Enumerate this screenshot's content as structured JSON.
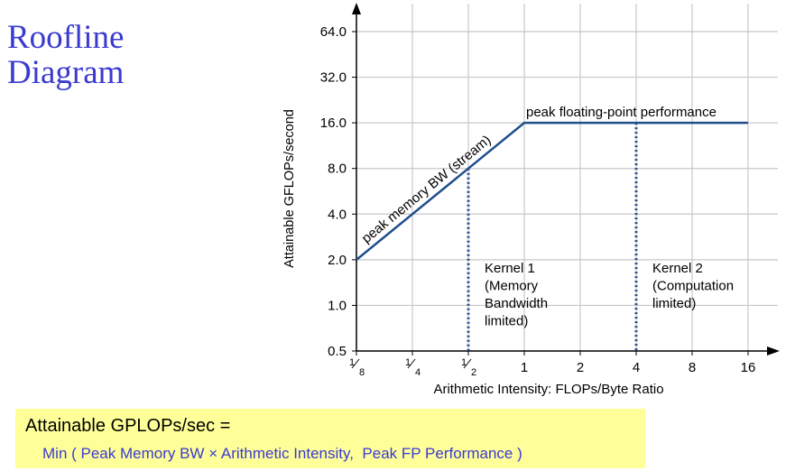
{
  "title": {
    "line1": "Roofline",
    "line2": "Diagram"
  },
  "chart_data": {
    "type": "line",
    "x_scale": "log2",
    "y_scale": "log2",
    "xlabel": "Arithmetic Intensity: FLOPs/Byte Ratio",
    "ylabel": "Attainable GFLOPs/second",
    "x_ticks": [
      {
        "value": 0.125,
        "num": "1",
        "den": "8"
      },
      {
        "value": 0.25,
        "num": "1",
        "den": "4"
      },
      {
        "value": 0.5,
        "num": "1",
        "den": "2"
      },
      {
        "value": 1,
        "label": "1"
      },
      {
        "value": 2,
        "label": "2"
      },
      {
        "value": 4,
        "label": "4"
      },
      {
        "value": 8,
        "label": "8"
      },
      {
        "value": 16,
        "label": "16"
      }
    ],
    "y_ticks": [
      {
        "value": 0.5,
        "label": "0.5"
      },
      {
        "value": 1,
        "label": "1.0"
      },
      {
        "value": 2,
        "label": "2.0"
      },
      {
        "value": 4,
        "label": "4.0"
      },
      {
        "value": 8,
        "label": "8.0"
      },
      {
        "value": 16,
        "label": "16.0"
      },
      {
        "value": 32,
        "label": "32.0"
      },
      {
        "value": 64,
        "label": "64.0"
      }
    ],
    "xlim": [
      0.125,
      16
    ],
    "ylim": [
      0.5,
      64
    ],
    "grid": true,
    "roofline": {
      "x": [
        0.125,
        1,
        16
      ],
      "y": [
        2,
        16,
        16
      ]
    },
    "line_labels": {
      "memory": "peak memory BW (stream)",
      "compute": "peak floating-point performance"
    },
    "kernels": [
      {
        "x": 0.5,
        "y": 8,
        "lines": [
          "Kernel 1",
          "(Memory",
          "Bandwidth",
          "limited)"
        ]
      },
      {
        "x": 4,
        "y": 16,
        "lines": [
          "Kernel 2",
          "(Computation",
          "limited)"
        ]
      }
    ],
    "colors": {
      "roofline": "#1f4e8c",
      "grid": "#c8c8c8",
      "axis": "#000000"
    }
  },
  "formula": {
    "line1": "Attainable GPLOPs/sec =",
    "line2": "Min ( Peak Memory BW × Arithmetic Intensity,  Peak FP Performance )"
  }
}
